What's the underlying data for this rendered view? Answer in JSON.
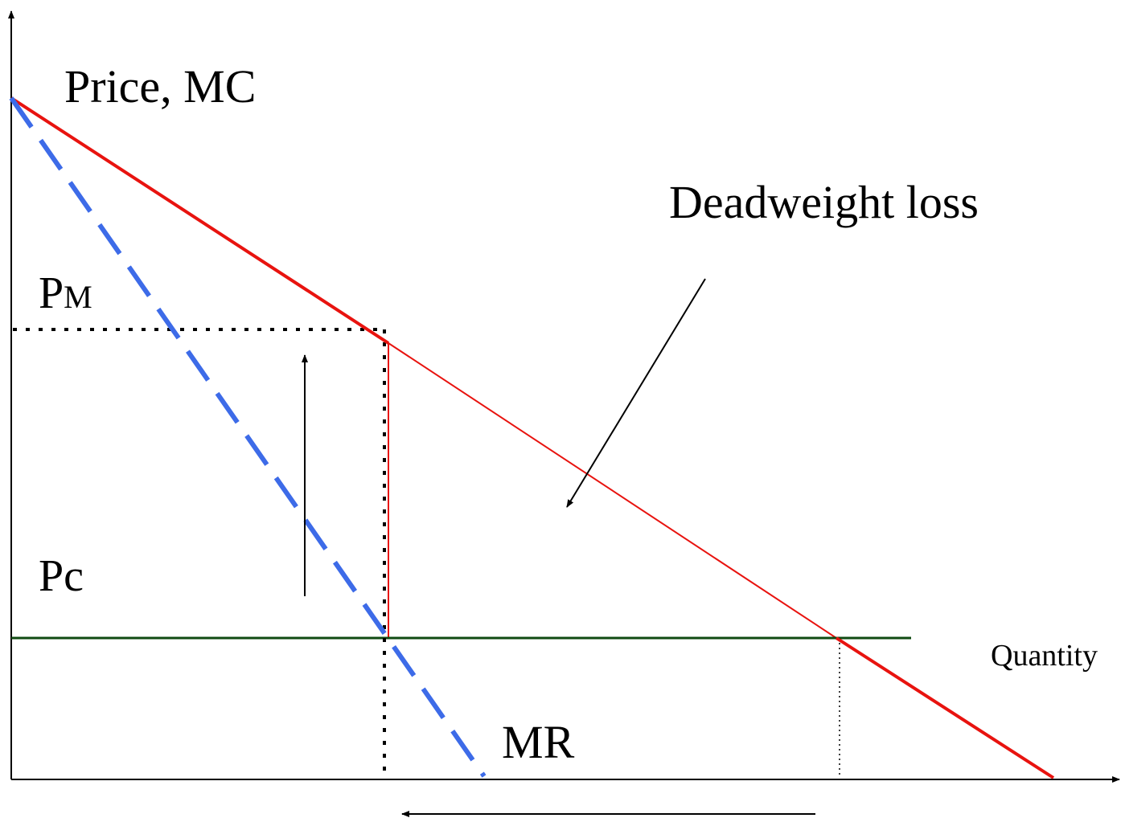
{
  "labels": {
    "y_axis": "Price, MC",
    "deadweight_loss": "Deadweight loss",
    "pm_main": "P",
    "pm_sub": "M",
    "pc": "Pc",
    "quantity": "Quantity",
    "mr": "MR"
  },
  "colors": {
    "demand_line": "#e8130f",
    "mr_line": "#3d6be8",
    "mc_line": "#0f4a12",
    "dwl_border": "#e8130f",
    "guides": "#000000",
    "axes": "#000000"
  }
}
